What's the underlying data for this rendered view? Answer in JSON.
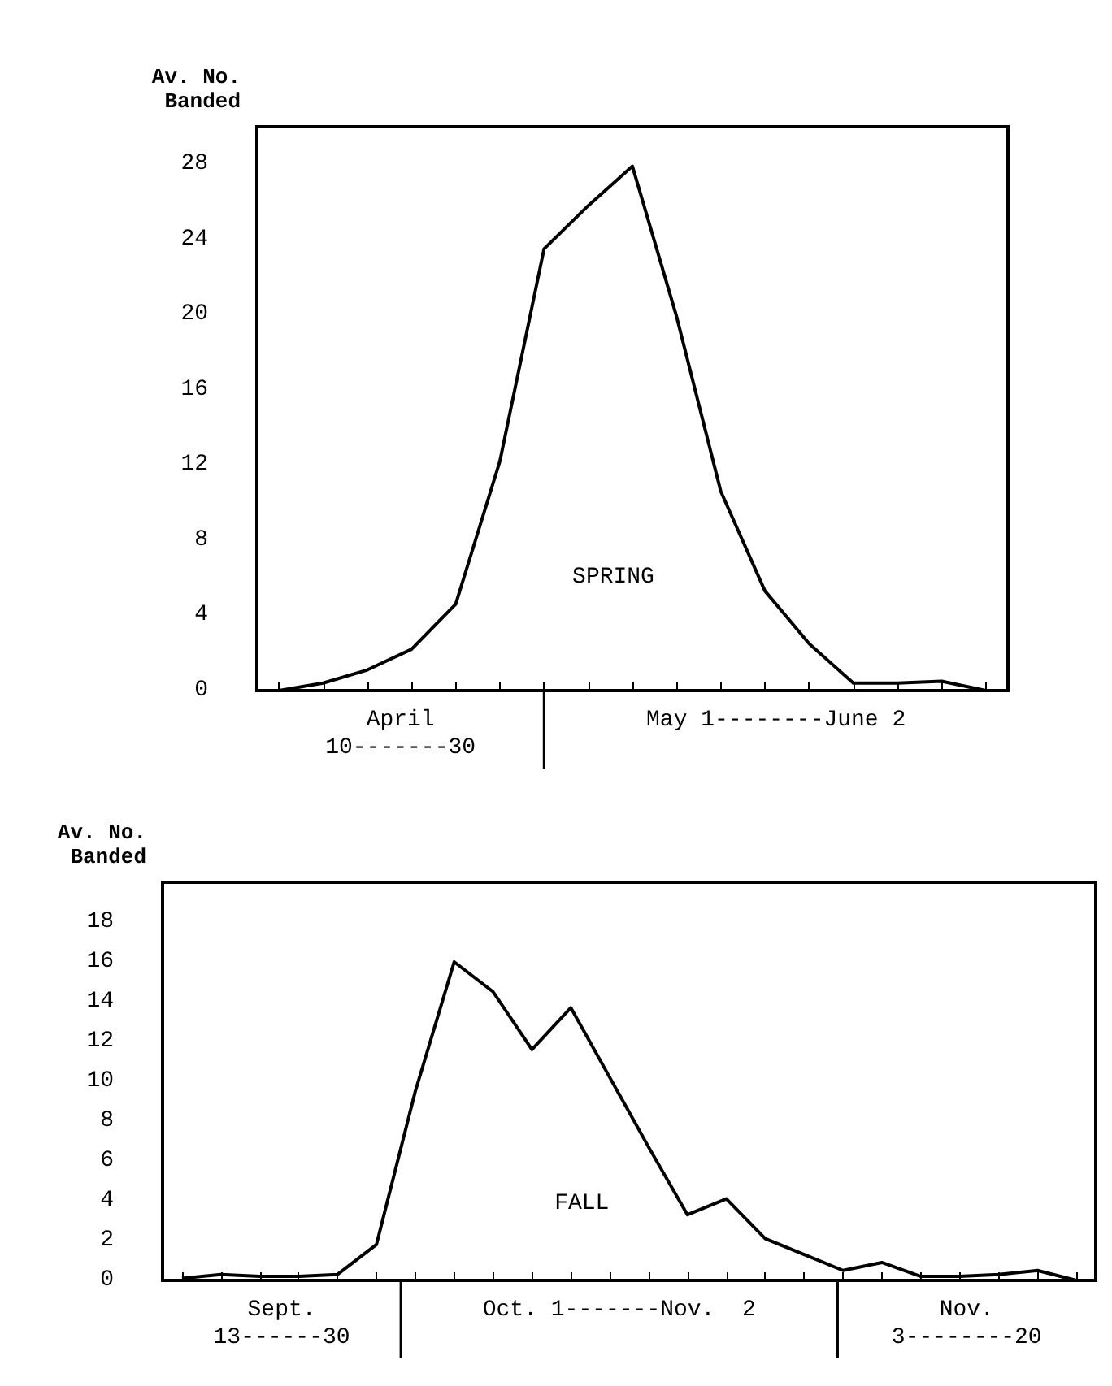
{
  "chart_data": [
    {
      "type": "line",
      "ylabel": "Av. No.\nBanded",
      "categories": [
        null,
        null,
        null,
        null,
        null,
        null,
        null,
        null,
        null,
        null,
        null,
        null,
        null,
        null,
        null,
        null,
        null
      ],
      "series": [
        {
          "color": "#000000",
          "values": [
            0,
            0.4,
            1.1,
            2.2,
            4.6,
            12.2,
            23.5,
            25.8,
            27.9,
            19.9,
            10.6,
            5.3,
            2.5,
            0.4,
            0.4,
            0.5,
            0
          ]
        }
      ],
      "ylim": [
        0,
        30
      ],
      "yticks": [
        0,
        4,
        8,
        12,
        16,
        20,
        24,
        28
      ],
      "grid": false,
      "marker": "none",
      "line_style": "solid",
      "annotations": [
        "SPRING",
        "April\n10-------30",
        "May 1--------June 2"
      ]
    },
    {
      "type": "line",
      "ylabel": "Av. No.\nBanded",
      "categories": [
        null,
        null,
        null,
        null,
        null,
        null,
        null,
        null,
        null,
        null,
        null,
        null,
        null,
        null,
        null,
        null,
        null,
        null,
        null,
        null,
        null,
        null,
        null,
        null
      ],
      "series": [
        {
          "color": "#000000",
          "values": [
            0.1,
            0.3,
            0.2,
            0.2,
            0.3,
            1.8,
            9.5,
            16,
            14.5,
            11.6,
            13.7,
            10.2,
            6.7,
            3.3,
            4.1,
            2.1,
            1.3,
            0.5,
            0.9,
            0.2,
            0.2,
            0.3,
            0.5,
            0
          ]
        }
      ],
      "ylim": [
        0,
        20
      ],
      "yticks": [
        0,
        2,
        4,
        6,
        8,
        10,
        12,
        14,
        16,
        18
      ],
      "grid": false,
      "marker": "none",
      "line_style": "solid",
      "annotations": [
        "FALL",
        "Sept.\n13------30",
        "Oct. 1-------Nov.  2",
        "Nov.\n3--------20"
      ]
    }
  ]
}
